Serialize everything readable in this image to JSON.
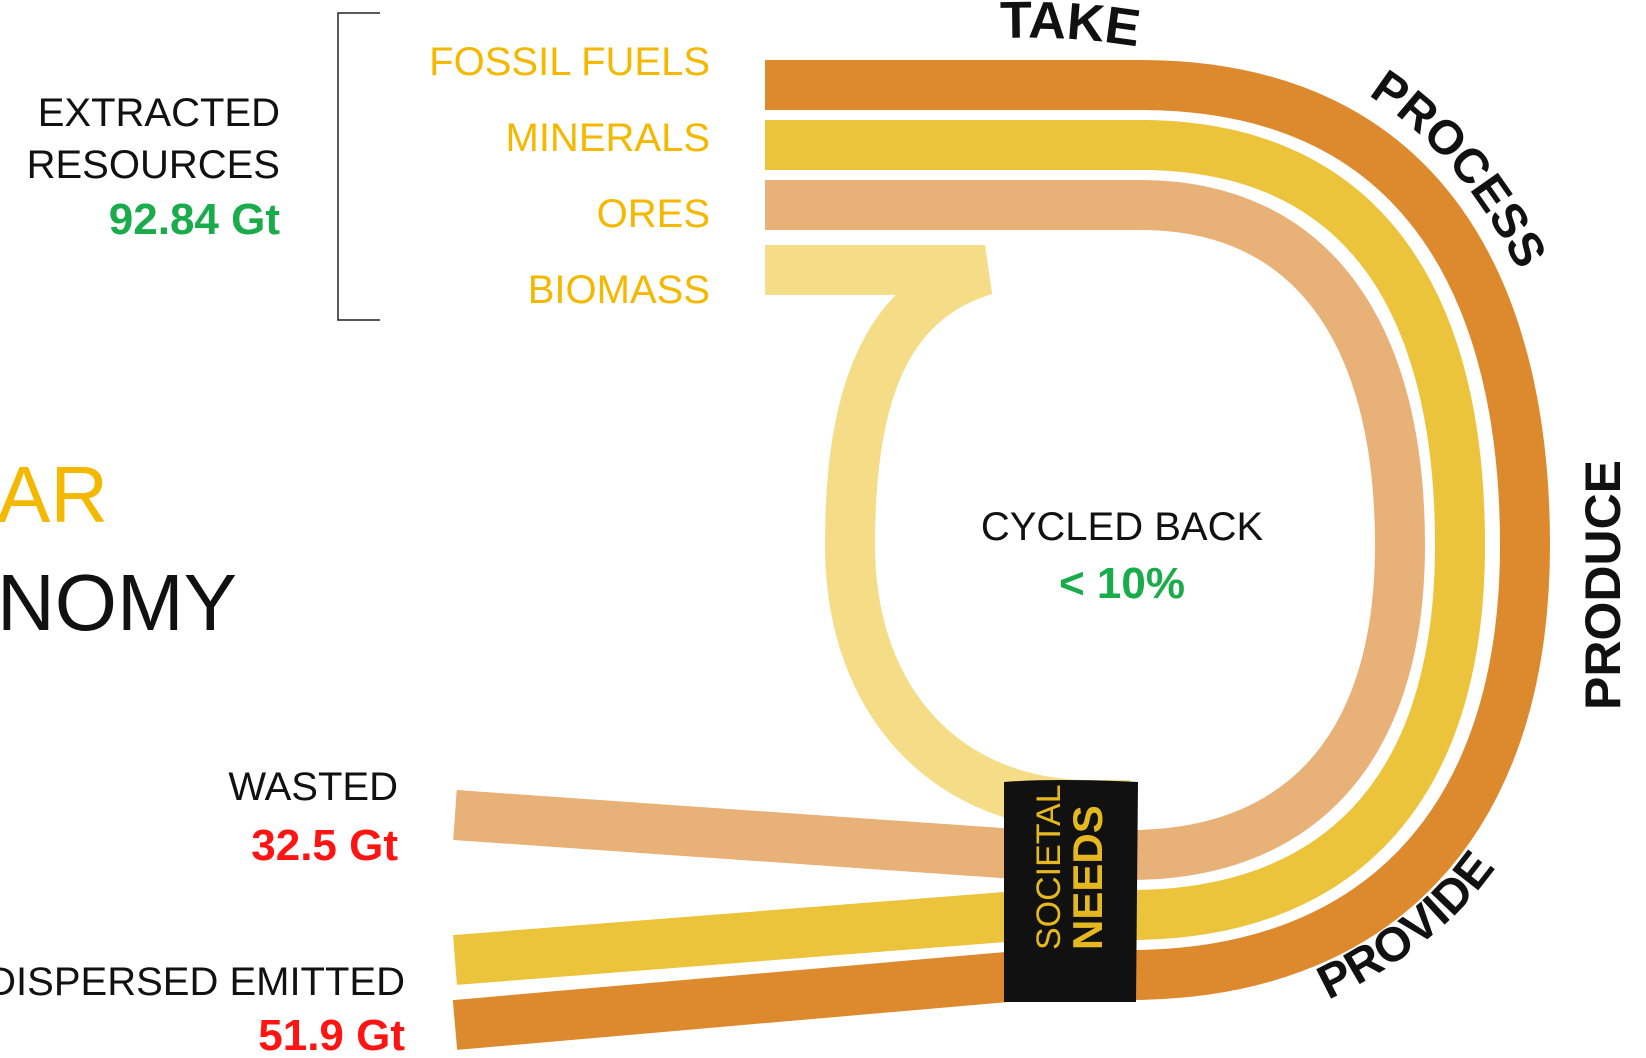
{
  "extracted": {
    "label_line1": "EXTRACTED",
    "label_line2": "RESOURCES",
    "value": "92.84 Gt"
  },
  "resources": [
    {
      "name": "FOSSIL FUELS",
      "color": "#dc8a2d"
    },
    {
      "name": "MINERALS",
      "color": "#ecc43c"
    },
    {
      "name": "ORES",
      "color": "#e8b178"
    },
    {
      "name": "BIOMASS",
      "color": "#f5dc87"
    }
  ],
  "title": {
    "line1": "AR",
    "line2": "NOMY"
  },
  "stages": {
    "take": "TAKE",
    "process": "PROCESS",
    "produce": "PRODUCE",
    "provide": "PROVIDE"
  },
  "cycled": {
    "label": "CYCLED BACK",
    "value": "< 10%"
  },
  "wasted": {
    "label": "WASTED",
    "value": "32.5 Gt"
  },
  "dispersed": {
    "label": "DISPERSED EMITTED",
    "value": "51.9 Gt"
  },
  "societal": {
    "line1": "SOCIETAL",
    "line2": "NEEDS"
  },
  "colors": {
    "label_yellow": "#f5b800",
    "value_green": "#1aab4b",
    "value_red": "#ff1414",
    "band_black": "#111111",
    "needs_gold": "#e6b820"
  }
}
